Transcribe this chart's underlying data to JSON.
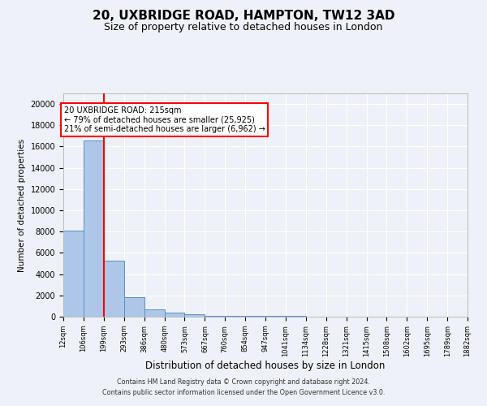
{
  "title": "20, UXBRIDGE ROAD, HAMPTON, TW12 3AD",
  "subtitle": "Size of property relative to detached houses in London",
  "xlabel": "Distribution of detached houses by size in London",
  "ylabel": "Number of detached properties",
  "annotation_title": "20 UXBRIDGE ROAD: 215sqm",
  "annotation_line1": "← 79% of detached houses are smaller (25,925)",
  "annotation_line2": "21% of semi-detached houses are larger (6,962) →",
  "footer_line1": "Contains HM Land Registry data © Crown copyright and database right 2024.",
  "footer_line2": "Contains public sector information licensed under the Open Government Licence v3.0.",
  "bar_color": "#aec6e8",
  "bar_edge_color": "#5a8fc2",
  "vline_color": "red",
  "vline_x": 199,
  "bin_edges": [
    12,
    106,
    199,
    293,
    386,
    480,
    573,
    667,
    760,
    854,
    947,
    1041,
    1134,
    1228,
    1321,
    1415,
    1508,
    1602,
    1695,
    1789,
    1882
  ],
  "bin_labels": [
    "12sqm",
    "106sqm",
    "199sqm",
    "293sqm",
    "386sqm",
    "480sqm",
    "573sqm",
    "667sqm",
    "760sqm",
    "854sqm",
    "947sqm",
    "1041sqm",
    "1134sqm",
    "1228sqm",
    "1321sqm",
    "1415sqm",
    "1508sqm",
    "1602sqm",
    "1695sqm",
    "1789sqm",
    "1882sqm"
  ],
  "bar_heights": [
    8100,
    16600,
    5300,
    1800,
    650,
    350,
    200,
    100,
    80,
    60,
    50,
    40,
    30,
    25,
    20,
    18,
    15,
    12,
    10,
    8
  ],
  "ylim": [
    0,
    21000
  ],
  "yticks": [
    0,
    2000,
    4000,
    6000,
    8000,
    10000,
    12000,
    14000,
    16000,
    18000,
    20000
  ],
  "background_color": "#eef2f8",
  "grid_color": "#ffffff",
  "title_fontsize": 11,
  "subtitle_fontsize": 9,
  "annotation_box_color": "white",
  "annotation_box_edge": "red"
}
